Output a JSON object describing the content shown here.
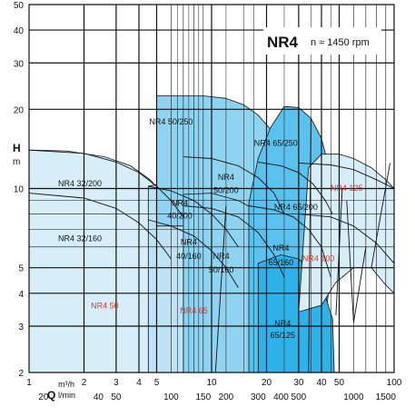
{
  "chart_data": {
    "type": "area",
    "title": "NR4",
    "subtitle": "n ≈ 1450 rpm",
    "ylabel": "H",
    "yunit": "m",
    "xlabel": "Q",
    "xunit_top": "m³/h",
    "xunit_bottom": "l/min",
    "yscale": "log",
    "xscale": "log",
    "ylim": [
      2,
      50
    ],
    "xlim_m3h": [
      1,
      100
    ],
    "grid": true,
    "y_ticks": [
      "2",
      "3",
      "4",
      "5",
      "10",
      "20",
      "30",
      "40",
      "50"
    ],
    "x_ticks_m3h": [
      "1",
      "2",
      "3",
      "4",
      "5",
      "10",
      "20",
      "30",
      "40",
      "50",
      "100"
    ],
    "x_ticks_lmin": [
      "20",
      "40",
      "50",
      "100",
      "150",
      "200",
      "300",
      "400",
      "500",
      "1000",
      "1500"
    ],
    "colors": {
      "region_light": "#d7eef9",
      "region_mid": "#bfe2f4",
      "region_blue": "#8fd3f1",
      "region_deep": "#5cc1ec",
      "region_dark": "#2fb2e8",
      "grid": "#111111",
      "label": "#111111",
      "label_red": "#d9382e"
    },
    "series": [
      {
        "name": "NR4 32/200",
        "family": "NR4 50",
        "shade": "region_light",
        "q_min": 0.9,
        "q_max": 6.5,
        "h_at_qmin": 14,
        "h_at_qmax": 8.2
      },
      {
        "name": "NR4 32/160",
        "family": "NR4 50",
        "shade": "region_light",
        "q_min": 0.9,
        "q_max": 6.2,
        "h_at_qmin": 9.5,
        "h_at_qmax": 5.2
      },
      {
        "name": "NR4 40/200",
        "family": "NR4 65",
        "shade": "region_mid",
        "q_min": 4.5,
        "q_max": 14,
        "h_at_qmin": 10,
        "h_at_qmax": 6
      },
      {
        "name": "NR4 40/160",
        "family": "NR4 65",
        "shade": "region_mid",
        "q_min": 4.5,
        "q_max": 13.5,
        "h_at_qmin": 7.5,
        "h_at_qmax": 4.3
      },
      {
        "name": "NR4 50/250",
        "family": "NR4 65",
        "shade": "region_blue",
        "q_min": 5,
        "q_max": 22,
        "h_at_qmin": 22,
        "h_at_qmax": 14
      },
      {
        "name": "NR4 50/200",
        "family": "NR4 65",
        "shade": "region_blue",
        "q_min": 7,
        "q_max": 24,
        "h_at_qmin": 13,
        "h_at_qmax": 8
      },
      {
        "name": "NR4 50/160",
        "family": "NR4 65",
        "shade": "region_blue",
        "q_min": 7,
        "q_max": 24,
        "h_at_qmin": 8.5,
        "h_at_qmax": 4.8
      },
      {
        "name": "NR4 65/250",
        "family": "NR4 100",
        "shade": "region_deep",
        "q_min": 16,
        "q_max": 43,
        "h_at_qmin": 20,
        "h_at_qmax": 13
      },
      {
        "name": "NR4 65/200",
        "family": "NR4 100",
        "shade": "region_deep",
        "q_min": 18,
        "q_max": 43,
        "h_at_qmin": 12.5,
        "h_at_qmax": 8
      },
      {
        "name": "NR4 65/160",
        "family": "NR4 100",
        "shade": "region_deep",
        "q_min": 16,
        "q_max": 43,
        "h_at_qmin": 8.5,
        "h_at_qmax": 4.5
      },
      {
        "name": "NR4 65/125",
        "family": "NR4 100",
        "shade": "region_dark",
        "q_min": 18,
        "q_max": 45,
        "h_at_qmin": 5.5,
        "h_at_qmax": 2.2
      },
      {
        "name": "NR4 125",
        "family": "NR4 125",
        "shade": "region_light",
        "q_min": 30,
        "q_max": 100,
        "h_at_qmin": 12,
        "h_at_qmax": 6
      }
    ],
    "labels": [
      {
        "text": "NR4 50/250",
        "q": 6.0,
        "h": 17.5,
        "red": false
      },
      {
        "text": "NR4 65/250",
        "q": 22.5,
        "h": 14.5,
        "red": false
      },
      {
        "text": "NR4 32/200",
        "q": 1.9,
        "h": 10.2,
        "red": false
      },
      {
        "text": "NR4",
        "q": 12,
        "h": 10.8,
        "red": false
      },
      {
        "text": "50/200",
        "q": 12,
        "h": 9.6,
        "red": false
      },
      {
        "text": "NR4",
        "q": 6.7,
        "h": 8.6,
        "red": false
      },
      {
        "text": "40/200",
        "q": 6.7,
        "h": 7.7,
        "red": false
      },
      {
        "text": "NR4 65/200",
        "q": 29,
        "h": 8.3,
        "red": false
      },
      {
        "text": "NR4 125",
        "q": 55,
        "h": 9.8,
        "red": true
      },
      {
        "text": "NR4 32/160",
        "q": 1.9,
        "h": 6.3,
        "red": false
      },
      {
        "text": "NR4",
        "q": 7.5,
        "h": 6.1,
        "red": false
      },
      {
        "text": "40/160",
        "q": 7.5,
        "h": 5.4,
        "red": false
      },
      {
        "text": "NR4",
        "q": 24,
        "h": 5.8,
        "red": false
      },
      {
        "text": "NR4",
        "q": 11.3,
        "h": 5.4,
        "red": false
      },
      {
        "text": "65/160",
        "q": 24,
        "h": 5.1,
        "red": false
      },
      {
        "text": "50/160",
        "q": 11.3,
        "h": 4.8,
        "red": false
      },
      {
        "text": "NR4 100",
        "q": 38.5,
        "h": 5.3,
        "red": true
      },
      {
        "text": "NR4 50",
        "q": 2.6,
        "h": 3.5,
        "red": true
      },
      {
        "text": "NR4 65",
        "q": 8.0,
        "h": 3.35,
        "red": true
      },
      {
        "text": "NR4",
        "q": 24.5,
        "h": 3.0,
        "red": false
      },
      {
        "text": "65/125",
        "q": 24.5,
        "h": 2.7,
        "red": false
      }
    ]
  }
}
